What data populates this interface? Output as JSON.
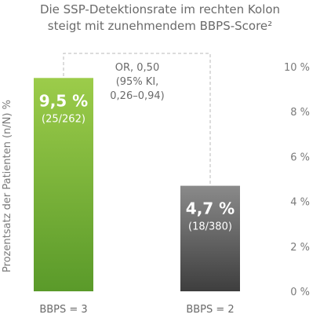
{
  "chart_data": {
    "type": "bar",
    "title_lines": [
      "Die SSP-Detektionsrate im rechten Kolon",
      "steigt mit zunehmendem BBPS-Score²"
    ],
    "ylabel": "Prozentsatz der Patienten (n/N) %",
    "ylim": [
      0,
      10
    ],
    "yticks": [
      {
        "value": 0,
        "label": "0 %"
      },
      {
        "value": 2,
        "label": "2 %"
      },
      {
        "value": 4,
        "label": "4 %"
      },
      {
        "value": 6,
        "label": "6 %"
      },
      {
        "value": 8,
        "label": "8 %"
      },
      {
        "value": 10,
        "label": "10 %"
      }
    ],
    "categories": [
      "BBPS = 3",
      "BBPS = 2"
    ],
    "values": [
      9.5,
      4.7
    ],
    "value_labels": [
      "9,5 %",
      "4,7 %"
    ],
    "count_labels": [
      "(25/262)",
      "(18/380)"
    ],
    "colors": [
      "#7cb93a",
      "#6e6e6e"
    ],
    "annotation_lines": [
      "OR, 0,50",
      "(95% KI,",
      "0,26–0,94)"
    ]
  }
}
